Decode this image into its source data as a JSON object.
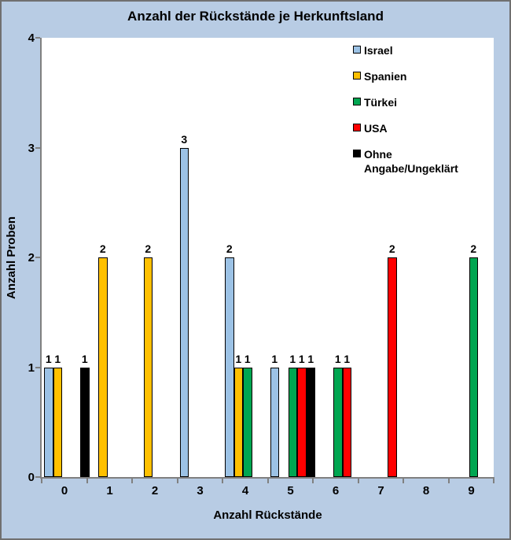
{
  "title": "Anzahl der Rückstände je Herkunftsland",
  "colors": {
    "background": "#B8CCE4",
    "plot_background": "#FFFFFF",
    "axis": "#808080",
    "frame_border": "#707070",
    "text": "#000000"
  },
  "chart_data": {
    "type": "bar",
    "title": "Anzahl der Rückstände je Herkunftsland",
    "xlabel": "Anzahl Rückstände",
    "ylabel": "Anzahl Proben",
    "categories": [
      "0",
      "1",
      "2",
      "3",
      "4",
      "5",
      "6",
      "7",
      "8",
      "9"
    ],
    "series": [
      {
        "name": "Israel",
        "color": "#9CC2E5",
        "values": [
          1,
          0,
          0,
          3,
          2,
          1,
          0,
          0,
          0,
          0
        ]
      },
      {
        "name": "Spanien",
        "color": "#FFC000",
        "values": [
          1,
          2,
          2,
          0,
          1,
          0,
          0,
          0,
          0,
          0
        ]
      },
      {
        "name": "Türkei",
        "color": "#00A651",
        "values": [
          0,
          0,
          0,
          0,
          1,
          1,
          1,
          0,
          0,
          2
        ]
      },
      {
        "name": "USA",
        "color": "#FF0000",
        "values": [
          0,
          0,
          0,
          0,
          0,
          1,
          1,
          2,
          0,
          0
        ]
      },
      {
        "name": "Ohne Angabe/Ungeklärt",
        "color": "#000000",
        "values": [
          1,
          0,
          0,
          0,
          0,
          1,
          0,
          0,
          0,
          0
        ]
      }
    ],
    "ylim": [
      0,
      4
    ],
    "yticks": [
      0,
      1,
      2,
      3,
      4
    ],
    "grid": false,
    "value_labels": true,
    "legend_position": "top-right"
  }
}
